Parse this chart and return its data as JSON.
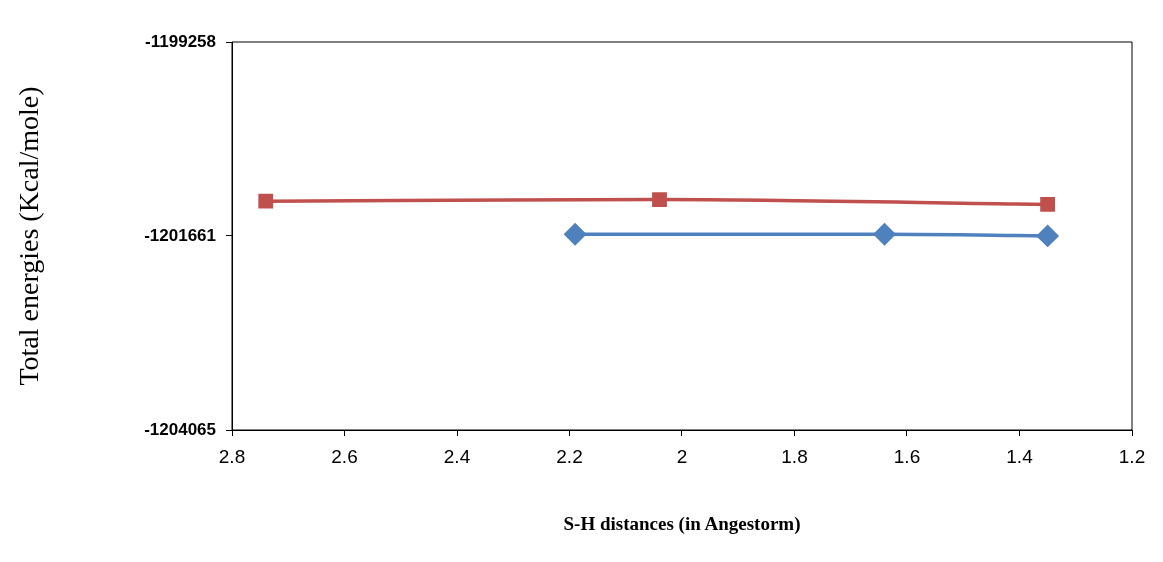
{
  "chart_data": {
    "type": "line",
    "xlabel": "S-H distances (in Angestorm)",
    "ylabel": "Total energies (Kcal/mole)",
    "xlim": [
      2.8,
      1.2
    ],
    "xticks": [
      2.8,
      2.6,
      2.4,
      2.2,
      2,
      1.8,
      1.6,
      1.4,
      1.2
    ],
    "ylim": [
      -1204065,
      -1199258
    ],
    "yticks": [
      -1204065,
      -1201661,
      -1199258
    ],
    "grid": false,
    "legend": false,
    "series": [
      {
        "color": "#4f81bd",
        "marker": "diamond",
        "x": [
          2.19,
          1.64,
          1.35
        ],
        "values": [
          -1201640,
          -1201640,
          -1201660
        ]
      },
      {
        "color": "#c0504d",
        "marker": "square",
        "x": [
          2.74,
          2.04,
          1.35
        ],
        "values": [
          -1201230,
          -1201210,
          -1201270
        ]
      }
    ]
  }
}
